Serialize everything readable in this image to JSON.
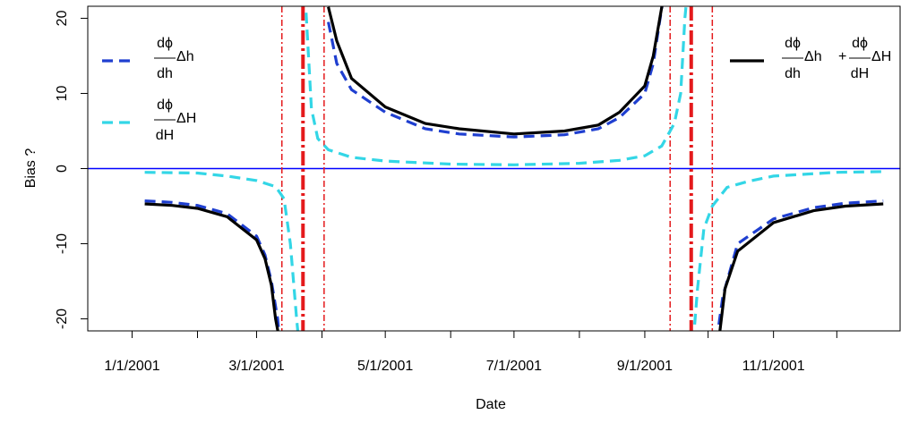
{
  "chart_data": {
    "type": "line",
    "xlabel": "Date",
    "ylabel": "Bias ?",
    "xlim": [
      "12/11/2000",
      "12/31/2001"
    ],
    "ylim": [
      -21.6,
      21.6
    ],
    "yticks": [
      -20,
      -10,
      0,
      10,
      20
    ],
    "xticks": [
      "1/1/2001",
      {
        "value": "2/1/2001",
        "label": null
      },
      "3/1/2001",
      {
        "value": "4/1/2001",
        "label": null
      },
      "5/1/2001",
      {
        "value": "6/1/2001",
        "label": null
      },
      "7/1/2001",
      {
        "value": "8/1/2001",
        "label": null
      },
      "9/1/2001",
      {
        "value": "10/1/2001",
        "label": null
      },
      "11/1/2001",
      {
        "value": "12/1/2001",
        "label": null
      }
    ],
    "hline": {
      "value": 0,
      "color": "#0000ff"
    },
    "vlines": [
      {
        "x": "3/13/2001",
        "style": "thin",
        "color": "#e41a1c"
      },
      {
        "x": "3/23/2001",
        "style": "thick",
        "color": "#e41a1c"
      },
      {
        "x": "4/2/2001",
        "style": "thin",
        "color": "#e41a1c"
      },
      {
        "x": "9/13/2001",
        "style": "thin",
        "color": "#e41a1c"
      },
      {
        "x": "9/23/2001",
        "style": "thick",
        "color": "#e41a1c"
      },
      {
        "x": "10/3/2001",
        "style": "thin",
        "color": "#e41a1c"
      }
    ],
    "series": [
      {
        "legend": {
          "terms": [
            {
              "numerator": "dϕ",
              "denominator": "dh",
              "after": "Δh"
            }
          ]
        },
        "legend_position": "topleft",
        "color": "#1f3fd0",
        "dashed": true,
        "x": [
          "1/7/2001",
          "1/20/2001",
          "2/1/2001",
          "2/15/2001",
          "3/1/2001",
          "3/5/2001",
          "3/8/2001",
          "3/11/2001",
          "3/12/2001",
          null,
          "4/4/2001",
          "4/8/2001",
          "4/15/2001",
          "5/1/2001",
          "5/20/2001",
          "6/5/2001",
          "7/1/2001",
          "7/25/2001",
          "8/10/2001",
          "8/20/2001",
          "9/1/2001",
          "9/5/2001",
          "9/8/2001",
          "9/10/2001",
          null,
          "10/5/2001",
          "10/8/2001",
          "10/15/2001",
          "11/1/2001",
          "11/20/2001",
          "12/5/2001",
          "12/23/2001"
        ],
        "values": [
          -4.3,
          -4.5,
          -4.9,
          -6,
          -9,
          -11.5,
          -15,
          -20,
          -23,
          null,
          19.5,
          14,
          10.5,
          7.5,
          5.3,
          4.6,
          4.2,
          4.5,
          5.3,
          6.8,
          10,
          14,
          19.5,
          23,
          null,
          -23,
          -17,
          -10,
          -6.7,
          -5.2,
          -4.6,
          -4.3
        ]
      },
      {
        "legend": {
          "terms": [
            {
              "numerator": "dϕ",
              "denominator": "dH",
              "after": "ΔH"
            }
          ]
        },
        "legend_position": "topleft",
        "color": "#33d6e6",
        "dashed": true,
        "x": [
          "1/7/2001",
          "2/1/2001",
          "2/15/2001",
          "3/1/2001",
          "3/10/2001",
          "3/14/2001",
          "3/17/2001",
          "3/20/2001",
          "3/21/2001",
          null,
          "3/24/2001",
          "3/27/2001",
          "3/30/2001",
          "4/4/2001",
          "4/15/2001",
          "5/1/2001",
          "6/1/2001",
          "7/1/2001",
          "8/1/2001",
          "8/20/2001",
          "9/1/2001",
          "9/9/2001",
          "9/15/2001",
          "9/18/2001",
          "9/20/2001",
          "9/21/2001",
          null,
          "9/24/2001",
          "9/26/2001",
          "9/29/2001",
          "10/3/2001",
          "10/10/2001",
          "10/20/2001",
          "11/1/2001",
          "12/1/2001",
          "12/23/2001"
        ],
        "values": [
          -0.5,
          -0.6,
          -1,
          -1.6,
          -2.4,
          -4,
          -10,
          -20,
          -23,
          null,
          23,
          8,
          4,
          2.5,
          1.5,
          1,
          0.6,
          0.5,
          0.7,
          1.1,
          1.7,
          3,
          6,
          10,
          20,
          23,
          null,
          -23,
          -16,
          -8,
          -5,
          -2.5,
          -1.7,
          -1,
          -0.5,
          -0.4
        ]
      },
      {
        "legend": {
          "terms": [
            {
              "numerator": "dϕ",
              "denominator": "dh",
              "after": "Δh"
            },
            {
              "numerator": "dϕ",
              "denominator": "dH",
              "after": "ΔH"
            }
          ],
          "joiner": "+"
        },
        "legend_position": "topright",
        "color": "#000000",
        "dashed": false,
        "x": [
          "1/7/2001",
          "1/20/2001",
          "2/1/2001",
          "2/15/2001",
          "3/1/2001",
          "3/5/2001",
          "3/8/2001",
          "3/10/2001",
          "3/12/2001",
          null,
          "4/4/2001",
          "4/8/2001",
          "4/15/2001",
          "5/1/2001",
          "5/20/2001",
          "6/5/2001",
          "7/1/2001",
          "7/25/2001",
          "8/10/2001",
          "8/20/2001",
          "9/1/2001",
          "9/5/2001",
          "9/10/2001",
          null,
          "10/6/2001",
          "10/9/2001",
          "10/15/2001",
          "11/1/2001",
          "11/20/2001",
          "12/5/2001",
          "12/23/2001"
        ],
        "values": [
          -4.7,
          -4.9,
          -5.3,
          -6.4,
          -9.5,
          -12,
          -15.5,
          -20,
          -23,
          null,
          21.5,
          17,
          12,
          8.2,
          6,
          5.3,
          4.6,
          5,
          5.8,
          7.5,
          11,
          15,
          23,
          null,
          -23,
          -16,
          -11,
          -7.2,
          -5.6,
          -5,
          -4.7
        ]
      }
    ]
  }
}
